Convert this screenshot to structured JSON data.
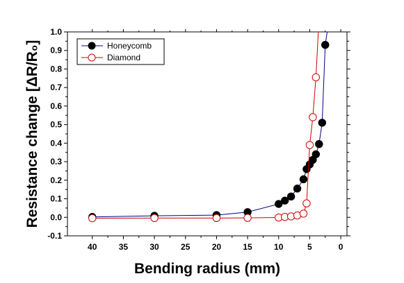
{
  "chart_data": {
    "type": "line",
    "xlabel": "Bending radius (mm)",
    "ylabel": "Resistance change  [ΔR/R₀]",
    "xlim": [
      44,
      -1
    ],
    "x_reversed": true,
    "ylim": [
      -0.1,
      1.0
    ],
    "xticks": [
      40,
      35,
      30,
      25,
      20,
      15,
      10,
      5,
      0
    ],
    "yticks": [
      -0.1,
      0.0,
      0.1,
      0.2,
      0.3,
      0.4,
      0.5,
      0.6,
      0.7,
      0.8,
      0.9,
      1.0
    ],
    "ytick_labels": [
      "-0.1",
      "0.0",
      "0.1",
      "0.2",
      "0.3",
      "0.4",
      "0.5",
      "0.6",
      "0.7",
      "0.8",
      "0.9",
      "1.0"
    ],
    "grid": false,
    "legend_position": "top-left",
    "series": [
      {
        "name": "Honeycomb",
        "color": "#00007f",
        "marker": "filled-circle",
        "marker_color": "#000000",
        "x": [
          40,
          30,
          20,
          15,
          10,
          9,
          8,
          7,
          6,
          5.5,
          5,
          4.5,
          4,
          3.5,
          3,
          2.5
        ],
        "y": [
          0.002,
          0.008,
          0.012,
          0.028,
          0.072,
          0.09,
          0.112,
          0.155,
          0.205,
          0.26,
          0.285,
          0.31,
          0.34,
          0.395,
          0.51,
          0.93
        ]
      },
      {
        "name": "Diamond",
        "color": "#cc0000",
        "marker": "open-circle",
        "marker_color": "#cc0000",
        "x": [
          40,
          30,
          20,
          15,
          10,
          9,
          8,
          7,
          6,
          5.5,
          5,
          4.5,
          4
        ],
        "y": [
          -0.005,
          -0.004,
          -0.004,
          -0.003,
          -0.001,
          0.002,
          0.005,
          0.01,
          0.02,
          0.075,
          0.39,
          0.54,
          0.755
        ]
      }
    ]
  }
}
